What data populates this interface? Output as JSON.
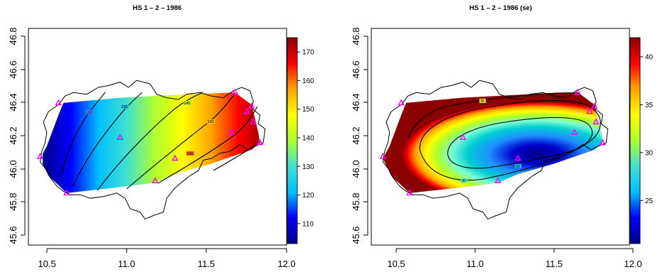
{
  "chart_data": [
    {
      "type": "heatmap",
      "title": "HS 1 – 2 – 1986",
      "xlabel": "",
      "ylabel": "",
      "xlim": [
        10.45,
        12.0
      ],
      "ylim": [
        45.55,
        46.8
      ],
      "x_ticks": [
        "10.5",
        "11.0",
        "11.5",
        "12.0"
      ],
      "y_ticks": [
        "45.6",
        "45.8",
        "46.0",
        "46.2",
        "46.4",
        "46.6",
        "46.8"
      ],
      "colorbar": {
        "min": 103,
        "max": 175,
        "ticks": [
          "110",
          "120",
          "130",
          "140",
          "150",
          "160",
          "170"
        ]
      },
      "contour_labels": [
        "120",
        "130",
        "140",
        "150",
        "160"
      ],
      "colormap": [
        "#00008b",
        "#0000ff",
        "#00bfff",
        "#40e0d0",
        "#adff2f",
        "#ffff00",
        "#ffa500",
        "#ff0000",
        "#8b0000"
      ],
      "marker_color": "#ff00ff"
    },
    {
      "type": "heatmap",
      "title": "HS 1 – 2 – 1986 (se)",
      "xlabel": "",
      "ylabel": "",
      "xlim": [
        10.45,
        12.0
      ],
      "ylim": [
        45.55,
        46.8
      ],
      "x_ticks": [
        "10.5",
        "11.0",
        "11.5",
        "12.0"
      ],
      "y_ticks": [
        "45.6",
        "45.8",
        "46.0",
        "46.2",
        "46.4",
        "46.6",
        "46.8"
      ],
      "colorbar": {
        "min": 20.5,
        "max": 42,
        "ticks": [
          "25",
          "30",
          "35",
          "40"
        ]
      },
      "contour_labels": [
        "35",
        "30",
        "30"
      ],
      "colormap": [
        "#00008b",
        "#0000ff",
        "#00bfff",
        "#40e0d0",
        "#adff2f",
        "#ffff00",
        "#ffa500",
        "#ff0000",
        "#8b0000"
      ],
      "marker_color": "#ff00ff"
    }
  ],
  "stations": [
    {
      "x": 10.52,
      "y": 46.06
    },
    {
      "x": 10.63,
      "y": 46.37
    },
    {
      "x": 10.68,
      "y": 45.85
    },
    {
      "x": 11.0,
      "y": 46.17
    },
    {
      "x": 11.21,
      "y": 45.92
    },
    {
      "x": 11.33,
      "y": 46.05
    },
    {
      "x": 11.69,
      "y": 46.43
    },
    {
      "x": 11.67,
      "y": 46.2
    },
    {
      "x": 11.76,
      "y": 46.32
    },
    {
      "x": 11.79,
      "y": 46.35
    },
    {
      "x": 11.8,
      "y": 46.26
    },
    {
      "x": 11.84,
      "y": 46.14
    }
  ]
}
